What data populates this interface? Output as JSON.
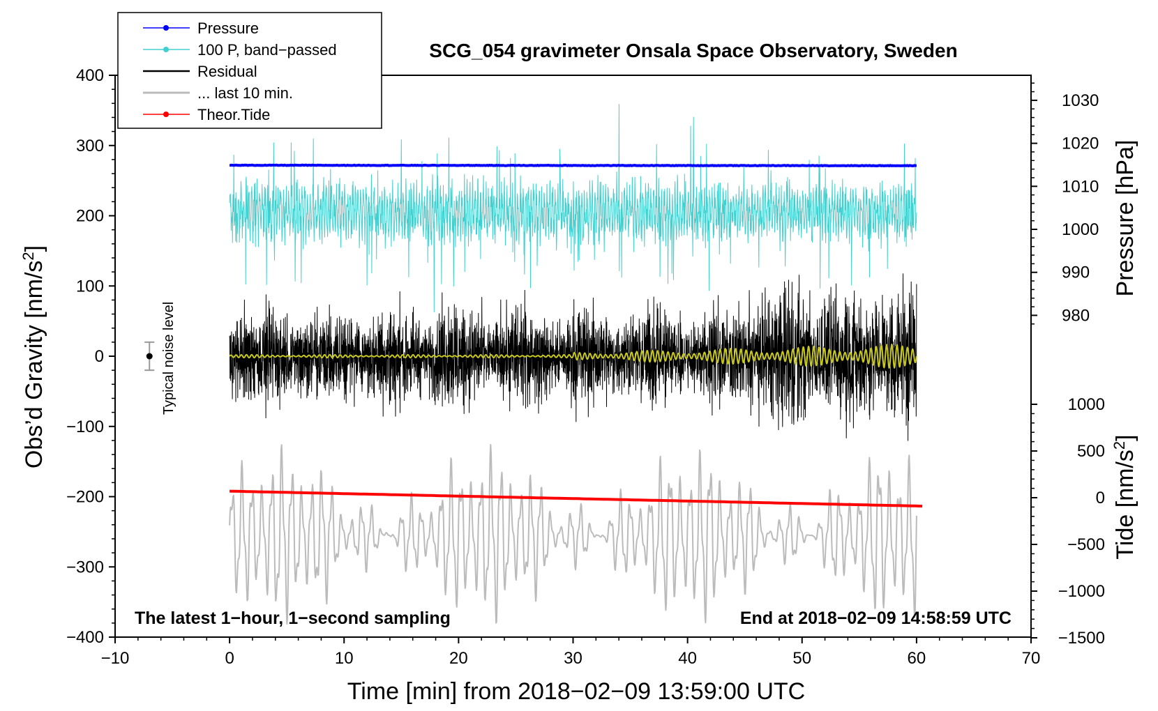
{
  "chart_data": {
    "type": "line",
    "title": "SCG_054 gravimeter Onsala Space Observatory, Sweden",
    "xlabel": "Time [min] from 2018−02−09 13:59:00 UTC",
    "ylabel_left": "Obs’d Gravity [nm/s",
    "ylabel_left_sup": "2",
    "ylabel_left_end": "]",
    "ylabel_right_pressure": "Pressure [hPa]",
    "ylabel_right_tide": "Tide [nm/s",
    "ylabel_right_tide_sup": "2",
    "ylabel_right_tide_end": "]",
    "xlim": [
      -10,
      70
    ],
    "ylim": [
      -400,
      400
    ],
    "x_ticks": [
      "−10",
      "0",
      "10",
      "20",
      "30",
      "40",
      "50",
      "60",
      "70"
    ],
    "y_ticks": [
      "400",
      "300",
      "200",
      "100",
      "0",
      "−100",
      "−200",
      "−300",
      "−400"
    ],
    "pressure_ticks": [
      "1030",
      "1020",
      "1010",
      "1000",
      "990",
      "980"
    ],
    "tide_ticks": [
      "1000",
      "500",
      "0",
      "−500",
      "−1000",
      "−1500"
    ],
    "annotation_left": "The latest 1−hour, 1−second sampling",
    "annotation_right": "End at 2018−02−09 14:58:59 UTC",
    "noise_label": "Typical noise level",
    "noise_bar": {
      "x": -7,
      "center": 0,
      "halfwidth": 20
    },
    "legend": [
      {
        "label": "Pressure",
        "color": "#0000ff",
        "marker": true
      },
      {
        "label": "100 P, band−passed",
        "color": "#40d0d0",
        "marker": true
      },
      {
        "label": "Residual",
        "color": "#000000",
        "marker": false
      },
      {
        "label": "... last 10 min.",
        "color": "#bbbbbb",
        "marker": false
      },
      {
        "label": "Theor.Tide",
        "color": "#ff0000",
        "marker": true
      }
    ],
    "series": [
      {
        "name": "Pressure",
        "axis": "pressure_hPa",
        "start": 1014.9,
        "end": 1014.8,
        "x": [
          0,
          60
        ]
      },
      {
        "name": "100 P, band-passed",
        "axis": "gravity",
        "mean": 205,
        "amplitude": 45,
        "x": [
          0,
          60
        ]
      },
      {
        "name": "Residual",
        "axis": "gravity",
        "mean": 0,
        "amplitude": 60,
        "x": [
          0,
          60
        ]
      },
      {
        "name": "... last 10 min.",
        "axis": "gravity",
        "mean": -255,
        "amplitude": 80,
        "x": [
          0,
          60
        ]
      },
      {
        "name": "Theor.Tide",
        "axis": "tide",
        "x": [
          0,
          60.5
        ],
        "values": [
          70,
          -90
        ]
      },
      {
        "name": "Residual filtered",
        "axis": "gravity",
        "mean": 0,
        "amplitude": 15,
        "x": [
          0,
          60
        ]
      }
    ],
    "colors": {
      "pressure": "#0000ff",
      "bandpass": "#40d0d0",
      "residual": "#000000",
      "last10": "#bbbbbb",
      "tide": "#ff0000",
      "filtered": "#c8c81e"
    }
  }
}
